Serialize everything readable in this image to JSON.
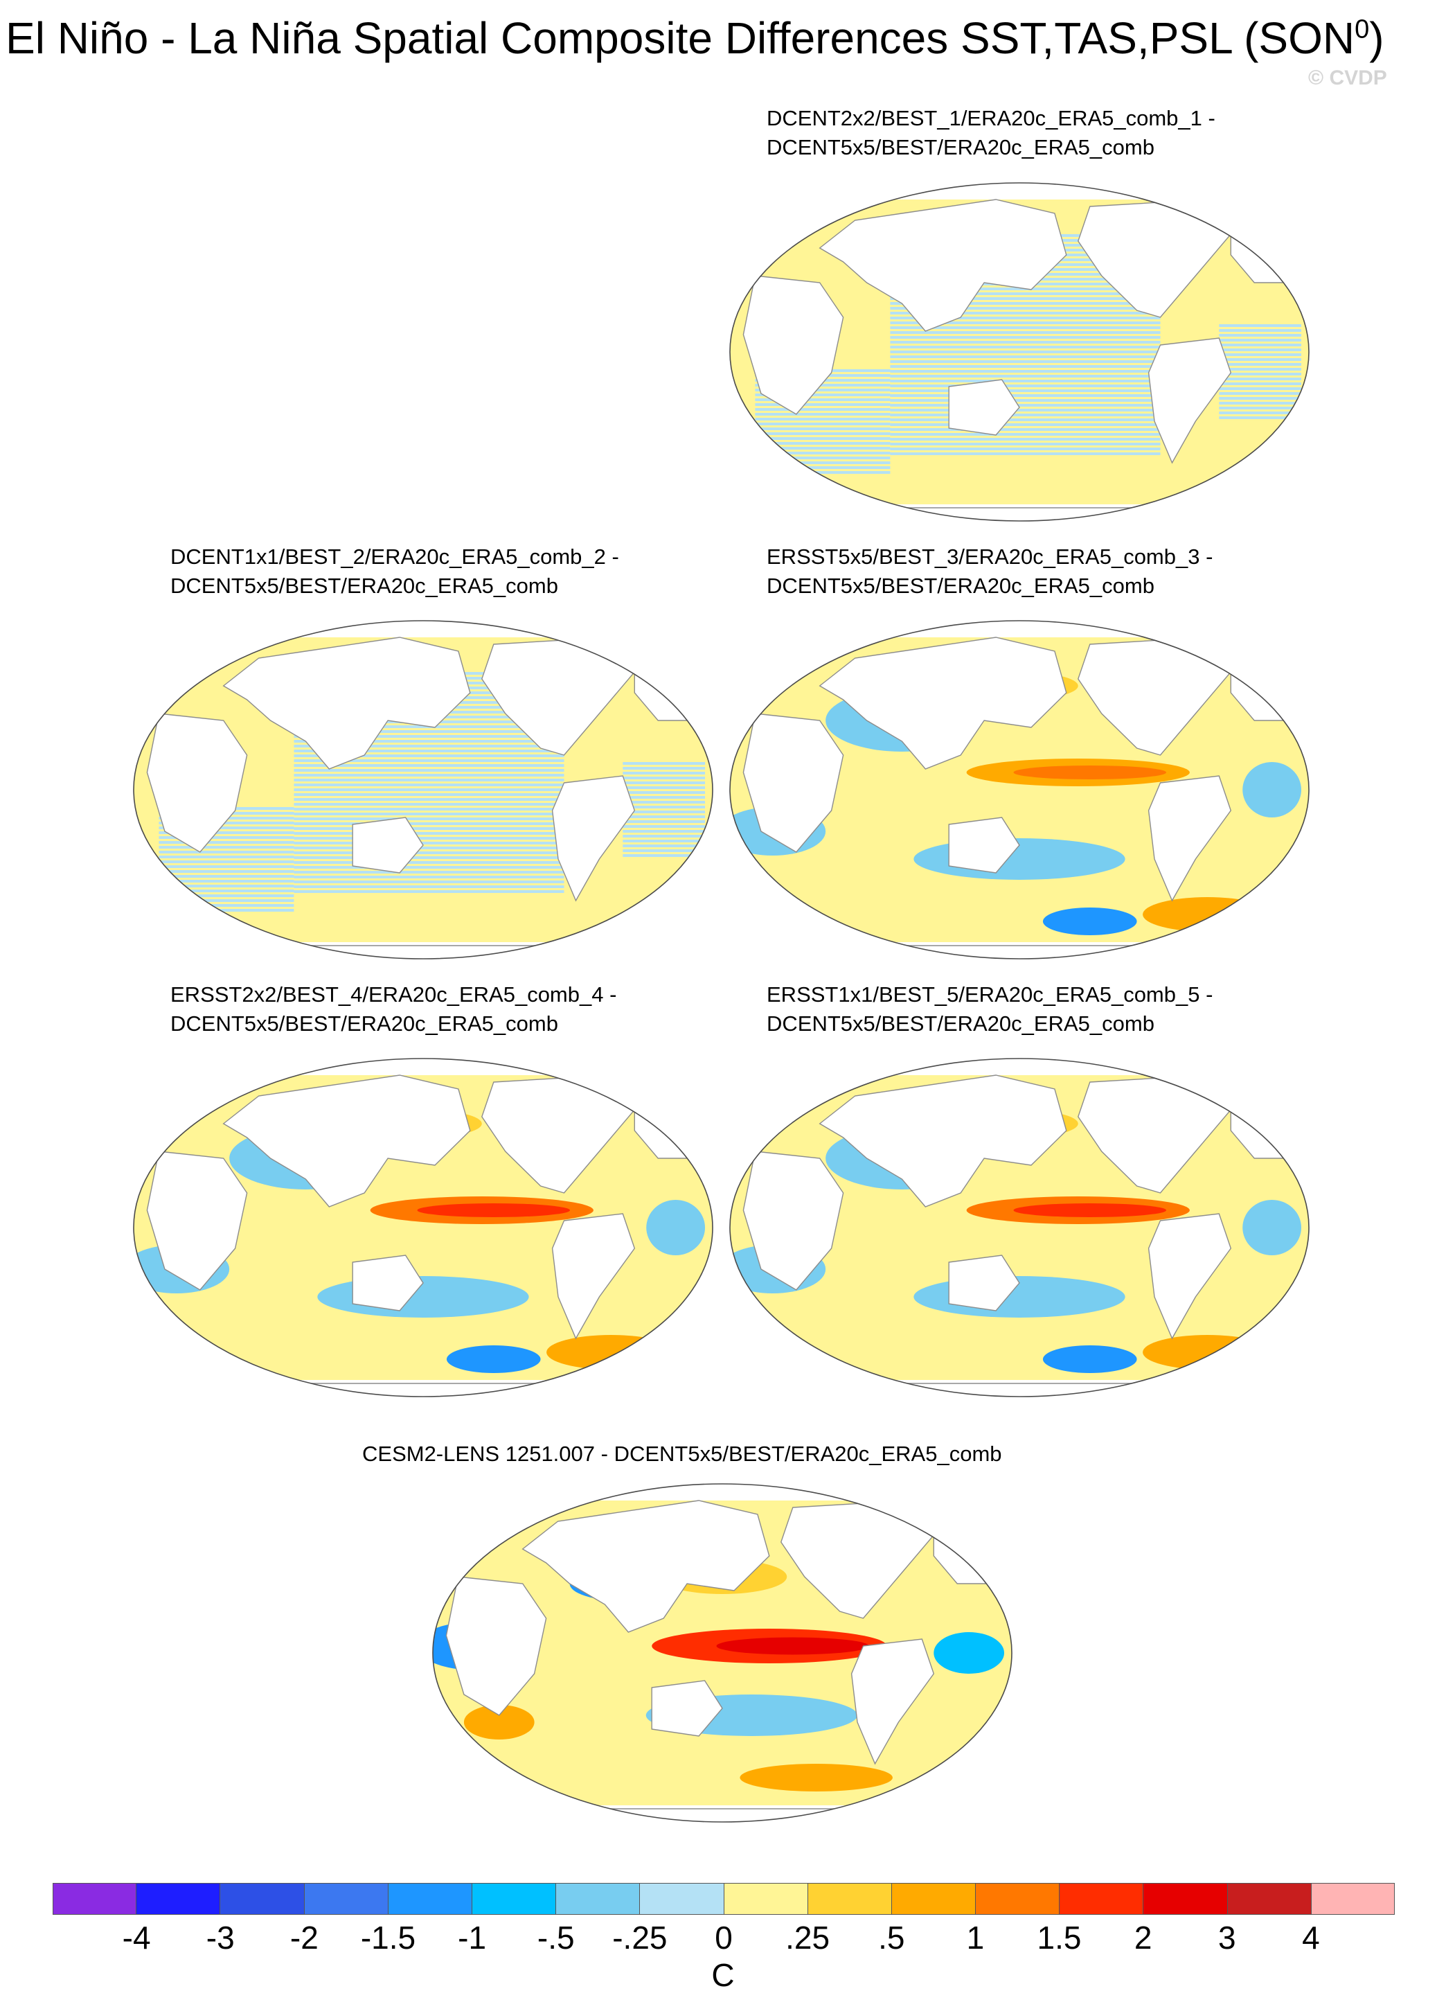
{
  "figure": {
    "title": "El Niño - La Niña Spatial Composite Differences SST,TAS,PSL (SON",
    "title_superscript": "0",
    "title_suffix": ")",
    "watermark": "© CVDP"
  },
  "chart_data": {
    "type": "heatmap",
    "projection": "Robinson global map, Pacific-centred",
    "grid": false,
    "panels": [
      {
        "id": "p1",
        "title_line1": "DCENT2x2/BEST_1/ERA20c_ERA5_comb_1 -",
        "title_line2": "DCENT5x5/BEST/ERA20c_ERA5_comb",
        "pattern": "small differences (-0.25 to 0.25); striped light-blue bands over Pacific, light yellow elsewhere"
      },
      {
        "id": "p2",
        "title_line1": "DCENT1x1/BEST_2/ERA20c_ERA5_comb_2 -",
        "title_line2": "DCENT5x5/BEST/ERA20c_ERA5_comb",
        "pattern": "small differences (-0.25 to 0.25); striped light-blue bands over Pacific, light yellow elsewhere"
      },
      {
        "id": "p3",
        "title_line1": "ERSST5x5/BEST_3/ERA20c_ERA5_comb_3 -",
        "title_line2": "DCENT5x5/BEST/ERA20c_ERA5_comb",
        "pattern": "equatorial Pacific band 0.5-1, Southern Ocean warm patch 0.5-1, blue patches -0.5 to -1"
      },
      {
        "id": "p4",
        "title_line1": "ERSST2x2/BEST_4/ERA20c_ERA5_comb_4 -",
        "title_line2": "DCENT5x5/BEST/ERA20c_ERA5_comb",
        "pattern": "equatorial Pacific band 1-1.5, Southern Ocean warm patch, blue patches -0.5 to -1"
      },
      {
        "id": "p5",
        "title_line1": "ERSST1x1/BEST_5/ERA20c_ERA5_comb_5 -",
        "title_line2": "DCENT5x5/BEST/ERA20c_ERA5_comb",
        "pattern": "equatorial Pacific band 1-1.5, Southern Ocean warm patch, blue patches -0.5 to -1"
      },
      {
        "id": "p6",
        "title_line1": "CESM2-LENS 1251.007 - DCENT5x5/BEST/ERA20c_ERA5_comb",
        "title_line2": "",
        "pattern": "strong equatorial Pacific warm tongue 2-3, western Pacific and Indian Ocean cold -1.5 to -2"
      }
    ],
    "colorbar": {
      "unit": "C",
      "tick_labels": [
        "-4",
        "-3",
        "-2",
        "-1.5",
        "-1",
        "-.5",
        "-.25",
        "0",
        ".25",
        ".5",
        "1",
        "1.5",
        "2",
        "3",
        "4"
      ],
      "colors": [
        "#8a2be2",
        "#1e1eff",
        "#2d50e6",
        "#3c78f0",
        "#1e96ff",
        "#00c0ff",
        "#78cdf0",
        "#b4e1f5",
        "#fff596",
        "#ffd232",
        "#ffaa00",
        "#ff7800",
        "#ff2d00",
        "#e60000",
        "#c81e1e",
        "#ffb4b4"
      ]
    }
  }
}
